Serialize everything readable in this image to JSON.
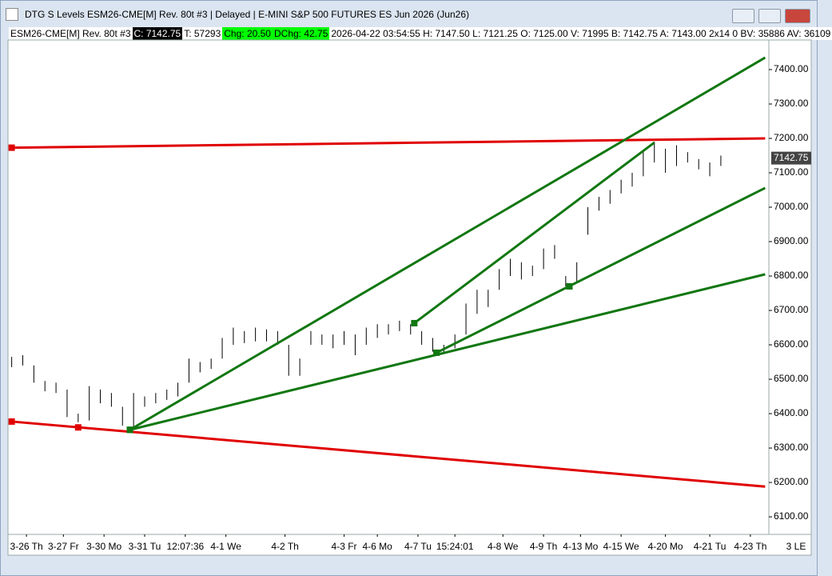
{
  "window": {
    "title": "DTG S Levels ESM26-CME[M]  Rev. 80t #3 | Delayed | E-MINI S&P 500 FUTURES ES Jun 2026 (Jun26)",
    "info": [
      {
        "text": "ESM26-CME[M]  Rev. 80t #3",
        "bg": "#ffffff",
        "fg": "#000000"
      },
      {
        "text": "C: 7142.75",
        "bg": "#000000",
        "fg": "#ffffff"
      },
      {
        "text": "T: 57293",
        "bg": "#ffffff",
        "fg": "#000000"
      },
      {
        "text": "Chg: 20.50",
        "bg": "#00ff00",
        "fg": "#000000"
      },
      {
        "text": "DChg: 42.75",
        "bg": "#00ff00",
        "fg": "#000000"
      },
      {
        "text": "2026-04-22 03:54:55 H: 7147.50 L: 7121.25 O: 7125.00 V: 71995 B: 7142.75 A: 7143.00 2x14 0 BV: 35886 AV: 36109",
        "bg": "#ffffff",
        "fg": "#000000"
      }
    ],
    "corner_label": "3 LE"
  },
  "chart_data": {
    "type": "ohlc",
    "color": "#000000",
    "x": [
      1,
      4,
      7,
      10,
      13,
      16,
      19,
      22,
      25,
      28,
      31,
      34,
      37,
      40,
      43,
      46,
      49,
      52,
      55,
      58,
      61,
      64,
      67,
      70,
      73,
      76,
      79,
      82,
      85,
      88,
      91,
      94,
      97,
      100,
      103,
      106,
      109,
      112,
      115,
      118,
      121,
      124,
      127,
      130,
      133,
      136,
      139,
      142,
      145,
      148,
      151,
      154,
      157,
      160,
      163,
      166,
      169,
      172,
      175,
      178,
      181,
      184,
      187,
      190,
      193
    ],
    "high": [
      6565,
      6570,
      6540,
      6495,
      6490,
      6470,
      6400,
      6480,
      6470,
      6460,
      6420,
      6460,
      6450,
      6460,
      6470,
      6490,
      6560,
      6550,
      6560,
      6620,
      6650,
      6640,
      6650,
      6645,
      6640,
      6600,
      6560,
      6640,
      6630,
      6630,
      6640,
      6630,
      6650,
      6660,
      6660,
      6670,
      6660,
      6640,
      6620,
      6600,
      6630,
      6720,
      6760,
      6760,
      6820,
      6850,
      6840,
      6830,
      6880,
      6890,
      6800,
      6840,
      7000,
      7030,
      7050,
      7080,
      7100,
      7160,
      7190,
      7170,
      7180,
      7160,
      7140,
      7130,
      7150
    ],
    "low": [
      6535,
      6540,
      6490,
      6465,
      6460,
      6390,
      6375,
      6380,
      6430,
      6420,
      6365,
      6355,
      6420,
      6430,
      6440,
      6450,
      6490,
      6520,
      6530,
      6560,
      6600,
      6605,
      6610,
      6610,
      6600,
      6510,
      6510,
      6600,
      6600,
      6590,
      6600,
      6570,
      6600,
      6620,
      6630,
      6640,
      6630,
      6600,
      6580,
      6575,
      6590,
      6630,
      6690,
      6710,
      6760,
      6800,
      6790,
      6800,
      6820,
      6850,
      6770,
      6780,
      6920,
      6990,
      7010,
      7040,
      7060,
      7090,
      7130,
      7100,
      7120,
      7130,
      7110,
      7090,
      7120
    ],
    "xlim": [
      0,
      206
    ],
    "xticks": [
      {
        "value": 5,
        "label": "3-26 Th"
      },
      {
        "value": 15,
        "label": "3-27 Fr"
      },
      {
        "value": 26,
        "label": "3-30 Mo"
      },
      {
        "value": 37,
        "label": "3-31 Tu"
      },
      {
        "value": 48,
        "label": "12:07:36"
      },
      {
        "value": 59,
        "label": "4-1 We"
      },
      {
        "value": 75,
        "label": "4-2 Th"
      },
      {
        "value": 91,
        "label": "4-3 Fr"
      },
      {
        "value": 100,
        "label": "4-6 Mo"
      },
      {
        "value": 111,
        "label": "4-7 Tu"
      },
      {
        "value": 121,
        "label": "15:24:01"
      },
      {
        "value": 134,
        "label": "4-8 We"
      },
      {
        "value": 145,
        "label": "4-9 Th"
      },
      {
        "value": 155,
        "label": "4-13 Mo"
      },
      {
        "value": 166,
        "label": "4-15 We"
      },
      {
        "value": 178,
        "label": "4-20 Mo"
      },
      {
        "value": 190,
        "label": "4-21 Tu"
      },
      {
        "value": 201,
        "label": "4-23 Th"
      }
    ],
    "ylim": [
      6049,
      7486
    ],
    "yticks": [
      {
        "value": 6100,
        "label": "6100.00"
      },
      {
        "value": 6200,
        "label": "6200.00"
      },
      {
        "value": 6300,
        "label": "6300.00"
      },
      {
        "value": 6400,
        "label": "6400.00"
      },
      {
        "value": 6500,
        "label": "6500.00"
      },
      {
        "value": 6600,
        "label": "6600.00"
      },
      {
        "value": 6700,
        "label": "6700.00"
      },
      {
        "value": 6800,
        "label": "6800.00"
      },
      {
        "value": 6900,
        "label": "6900.00"
      },
      {
        "value": 7000,
        "label": "7000.00"
      },
      {
        "value": 7100,
        "label": "7100.00"
      },
      {
        "value": 7200,
        "label": "7200.00"
      },
      {
        "value": 7300,
        "label": "7300.00"
      },
      {
        "value": 7400,
        "label": "7400.00"
      }
    ],
    "last_price": 7142.75,
    "lines": [
      {
        "color": "#e00000",
        "x": [
          1,
          205
        ],
        "y": [
          7173,
          7200
        ]
      },
      {
        "color": "#e00000",
        "x": [
          1,
          205
        ],
        "y": [
          6377,
          6188
        ]
      },
      {
        "color": "#117711",
        "x": [
          33,
          205
        ],
        "y": [
          6353,
          7435
        ]
      },
      {
        "color": "#117711",
        "x": [
          116,
          205
        ],
        "y": [
          6577,
          7056
        ]
      },
      {
        "color": "#117711",
        "x": [
          33,
          205
        ],
        "y": [
          6353,
          6805
        ]
      },
      {
        "color": "#117711",
        "x": [
          110,
          175
        ],
        "y": [
          6663,
          7188
        ]
      }
    ],
    "anchors": [
      {
        "color": "#e00000",
        "x": 19,
        "y": 6360
      },
      {
        "color": "#117711",
        "x": 152,
        "y": 6770
      }
    ]
  }
}
